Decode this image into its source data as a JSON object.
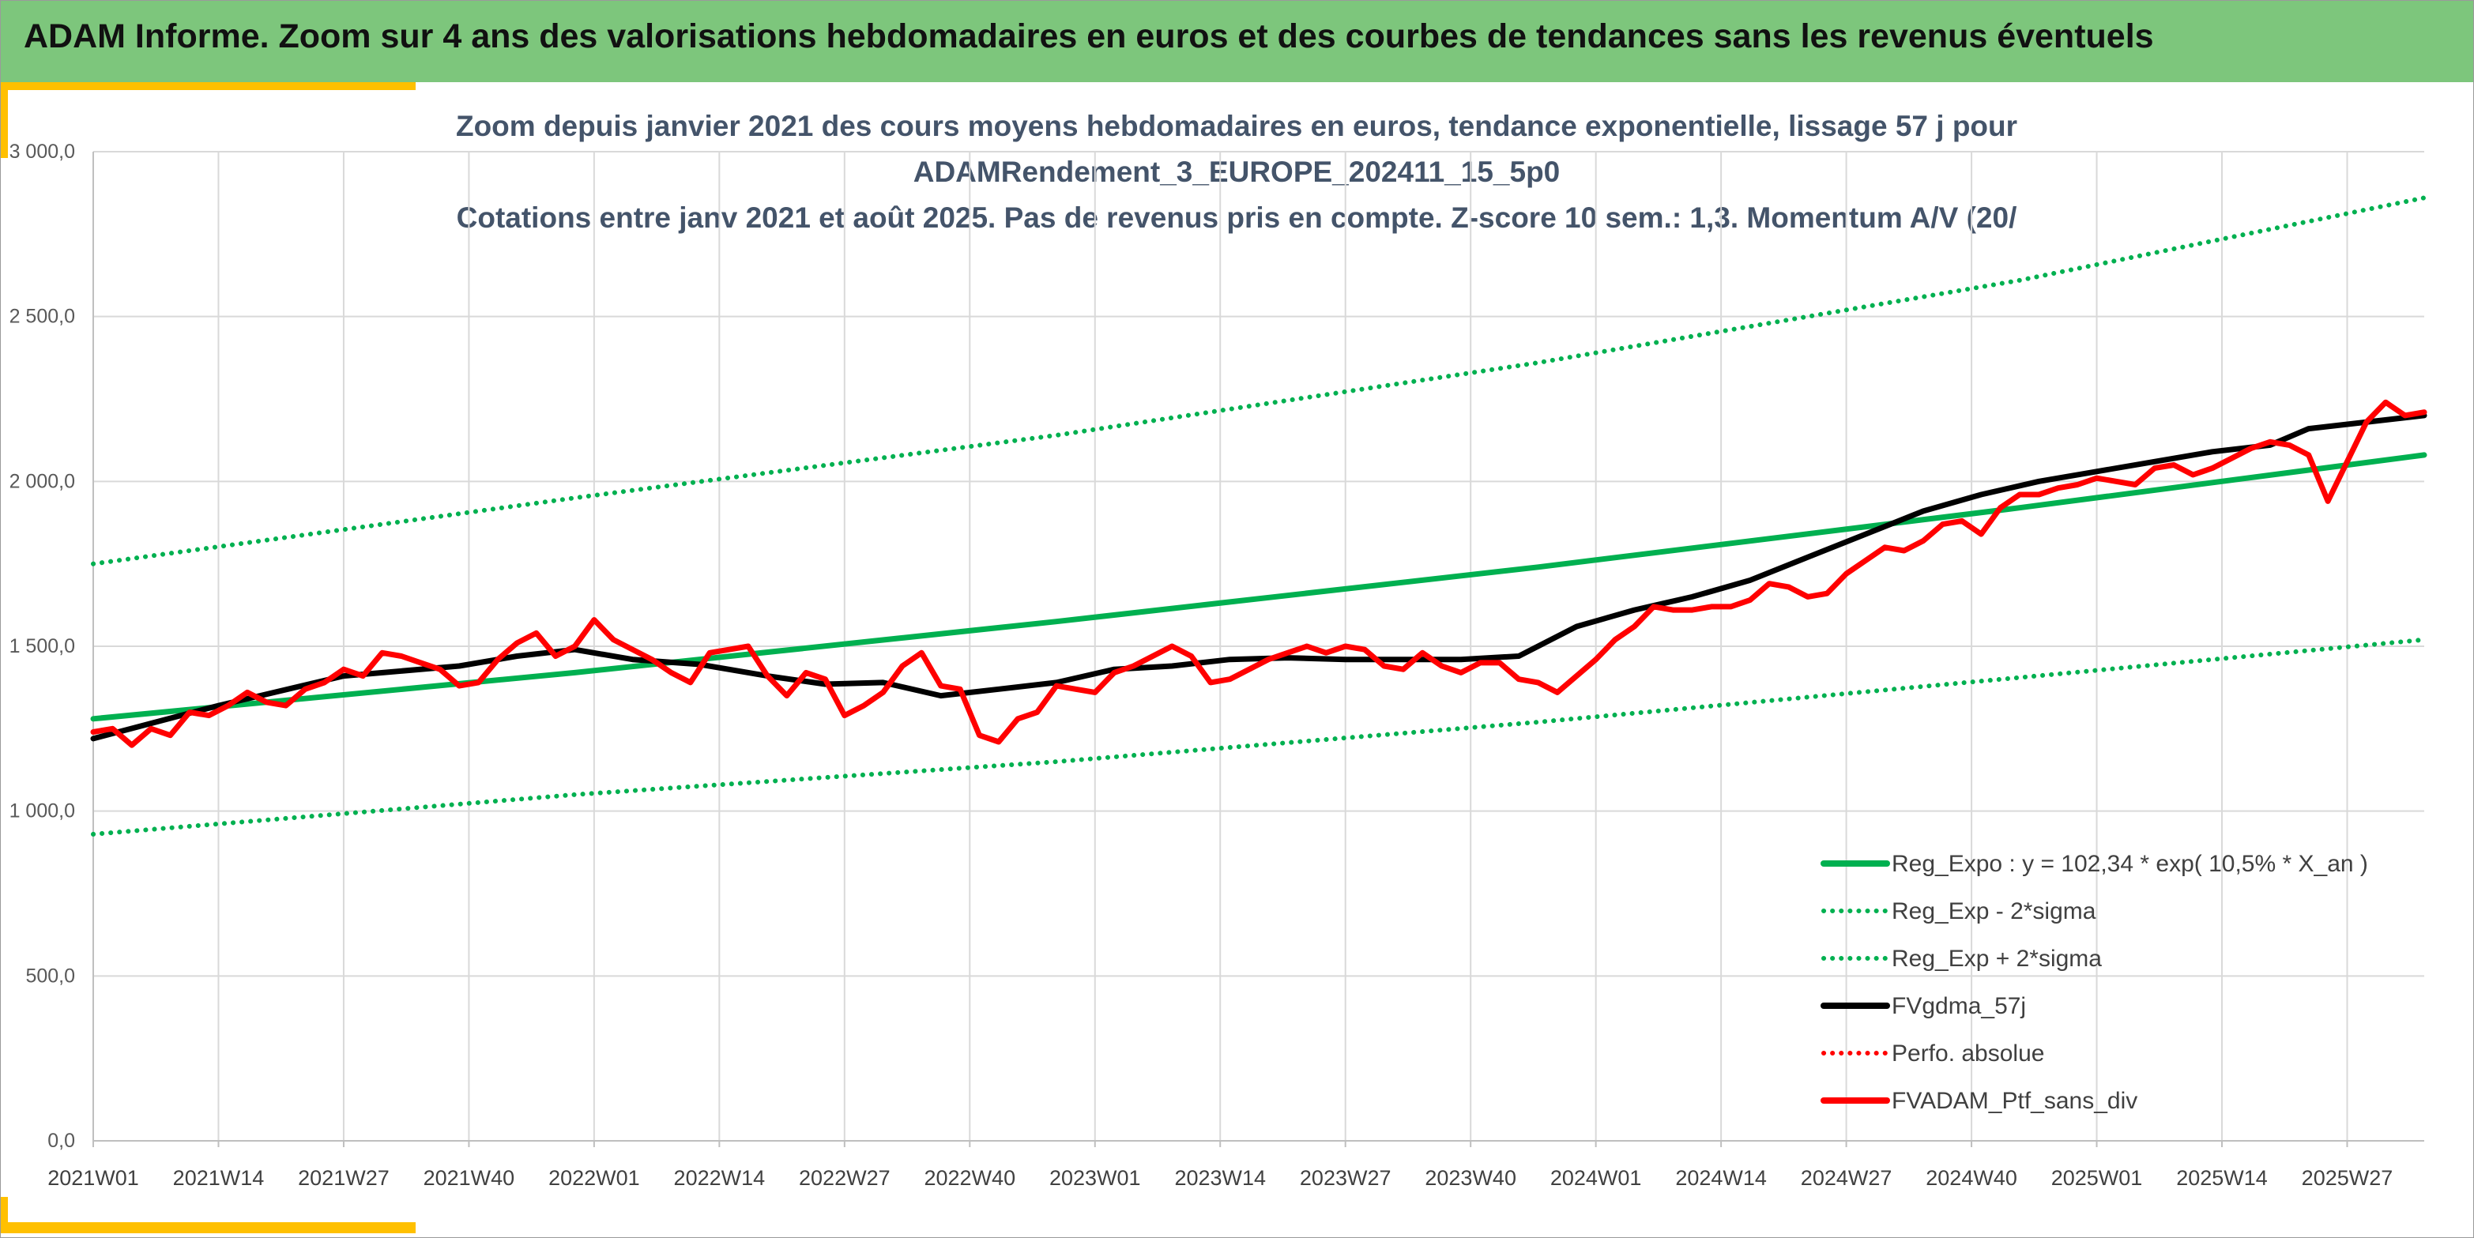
{
  "header": {
    "title": "ADAM Informe. Zoom sur 4 ans des valorisations hebdomadaires en euros et des courbes de tendances sans les revenus éventuels"
  },
  "colors": {
    "header_bg": "#7dc67c",
    "accent": "#ffc000",
    "trend_green": "#00b050",
    "gdma_black": "#000000",
    "ptf_red": "#ff0000"
  },
  "chart_data": {
    "type": "line",
    "title_lines": [
      "Zoom depuis janvier 2021 des cours moyens hebdomadaires en euros, tendance exponentielle, lissage 57 j pour",
      "ADAMRendement_3_EUROPE_202411_15_5p0",
      "Cotations entre janv 2021 et août 2025. Pas de revenus pris en compte. Z-score 10 sem.: 1,3. Momentum A/V (20/"
    ],
    "ylim": [
      0,
      3000
    ],
    "y_ticks": [
      "0,0",
      "500,0",
      "1 000,0",
      "1 500,0",
      "2 000,0",
      "2 500,0",
      "3 000,0"
    ],
    "x_ticks": [
      "2021W01",
      "2021W14",
      "2021W27",
      "2021W40",
      "2022W01",
      "2022W14",
      "2022W27",
      "2022W40",
      "2023W01",
      "2023W14",
      "2023W27",
      "2023W40",
      "2024W01",
      "2024W14",
      "2024W27",
      "2024W40",
      "2025W01",
      "2025W14",
      "2025W27"
    ],
    "x_week_range": [
      0,
      242
    ],
    "grid": "vertical and horizontal",
    "legend_position": "bottom-right",
    "legend": [
      {
        "label": "Reg_Expo : y = 102,34 * exp( 10,5% *  X_an )",
        "style": "solid",
        "color": "#00b050"
      },
      {
        "label": "Reg_Exp - 2*sigma",
        "style": "dotted",
        "color": "#00b050"
      },
      {
        "label": "Reg_Exp + 2*sigma",
        "style": "dotted",
        "color": "#00b050"
      },
      {
        "label": "FVgdma_57j",
        "style": "solid",
        "color": "#000000"
      },
      {
        "label": "Perfo. absolue",
        "style": "dotted",
        "color": "#ff0000"
      },
      {
        "label": "FVADAM_Ptf_sans_div",
        "style": "solid",
        "color": "#ff0000"
      }
    ],
    "series": [
      {
        "name": "Reg_Expo : y = 102,34 * exp( 10,5% *  X_an )",
        "style": "solid",
        "color": "#00b050",
        "x": [
          0,
          50,
          100,
          150,
          200,
          242
        ],
        "y": [
          1280,
          1420,
          1575,
          1740,
          1920,
          2080
        ]
      },
      {
        "name": "Reg_Exp - 2*sigma",
        "style": "dotted",
        "color": "#00b050",
        "x": [
          0,
          50,
          100,
          150,
          200,
          242
        ],
        "y": [
          930,
          1050,
          1150,
          1270,
          1405,
          1520
        ]
      },
      {
        "name": "Reg_Exp + 2*sigma",
        "style": "dotted",
        "color": "#00b050",
        "x": [
          0,
          50,
          100,
          150,
          200,
          242
        ],
        "y": [
          1750,
          1950,
          2140,
          2360,
          2610,
          2860
        ]
      },
      {
        "name": "FVgdma_57j",
        "style": "solid",
        "color": "#000000",
        "x": [
          0,
          13,
          26,
          38,
          44,
          50,
          56,
          63,
          70,
          76,
          82,
          88,
          94,
          100,
          106,
          112,
          118,
          124,
          130,
          136,
          142,
          148,
          154,
          160,
          166,
          172,
          178,
          184,
          190,
          196,
          202,
          208,
          214,
          220,
          226,
          230,
          242
        ],
        "y": [
          1220,
          1320,
          1410,
          1440,
          1470,
          1490,
          1460,
          1445,
          1410,
          1385,
          1390,
          1350,
          1370,
          1390,
          1430,
          1440,
          1460,
          1465,
          1460,
          1460,
          1460,
          1470,
          1560,
          1610,
          1650,
          1700,
          1770,
          1840,
          1910,
          1960,
          2000,
          2030,
          2060,
          2090,
          2110,
          2160,
          2200
        ]
      },
      {
        "name": "FVADAM_Ptf_sans_div",
        "style": "solid",
        "color": "#ff0000",
        "x": [
          0,
          2,
          4,
          6,
          8,
          10,
          12,
          14,
          16,
          18,
          20,
          22,
          24,
          26,
          28,
          30,
          32,
          34,
          36,
          38,
          40,
          42,
          44,
          46,
          48,
          50,
          52,
          54,
          56,
          58,
          60,
          62,
          64,
          66,
          68,
          70,
          72,
          74,
          76,
          78,
          80,
          82,
          84,
          86,
          88,
          90,
          92,
          94,
          96,
          98,
          100,
          102,
          104,
          106,
          108,
          110,
          112,
          114,
          116,
          118,
          120,
          122,
          124,
          126,
          128,
          130,
          132,
          134,
          136,
          138,
          140,
          142,
          144,
          146,
          148,
          150,
          152,
          154,
          156,
          158,
          160,
          162,
          164,
          166,
          168,
          170,
          172,
          174,
          176,
          178,
          180,
          182,
          184,
          186,
          188,
          190,
          192,
          194,
          196,
          198,
          200,
          202,
          204,
          206,
          208,
          210,
          212,
          214,
          216,
          218,
          220,
          222,
          224,
          226,
          228,
          230,
          232,
          234,
          236,
          238,
          240,
          242
        ],
        "y": [
          1240,
          1250,
          1200,
          1250,
          1230,
          1300,
          1290,
          1320,
          1360,
          1330,
          1320,
          1370,
          1390,
          1430,
          1410,
          1480,
          1470,
          1450,
          1430,
          1380,
          1390,
          1460,
          1510,
          1540,
          1470,
          1500,
          1580,
          1520,
          1490,
          1460,
          1420,
          1390,
          1480,
          1490,
          1500,
          1410,
          1350,
          1420,
          1400,
          1290,
          1320,
          1360,
          1440,
          1480,
          1380,
          1370,
          1230,
          1210,
          1280,
          1300,
          1380,
          1370,
          1360,
          1420,
          1440,
          1470,
          1500,
          1470,
          1390,
          1400,
          1430,
          1460,
          1480,
          1500,
          1480,
          1500,
          1490,
          1440,
          1430,
          1480,
          1440,
          1420,
          1450,
          1450,
          1400,
          1390,
          1360,
          1410,
          1460,
          1520,
          1560,
          1620,
          1610,
          1610,
          1620,
          1620,
          1640,
          1690,
          1680,
          1650,
          1660,
          1720,
          1760,
          1800,
          1790,
          1820,
          1870,
          1880,
          1840,
          1920,
          1960,
          1960,
          1980,
          1990,
          2010,
          2000,
          1990,
          2040,
          2050,
          2020,
          2040,
          2070,
          2100,
          2120,
          2110,
          2080,
          1940,
          2060,
          2180,
          2240,
          2200,
          2210
        ]
      }
    ]
  }
}
